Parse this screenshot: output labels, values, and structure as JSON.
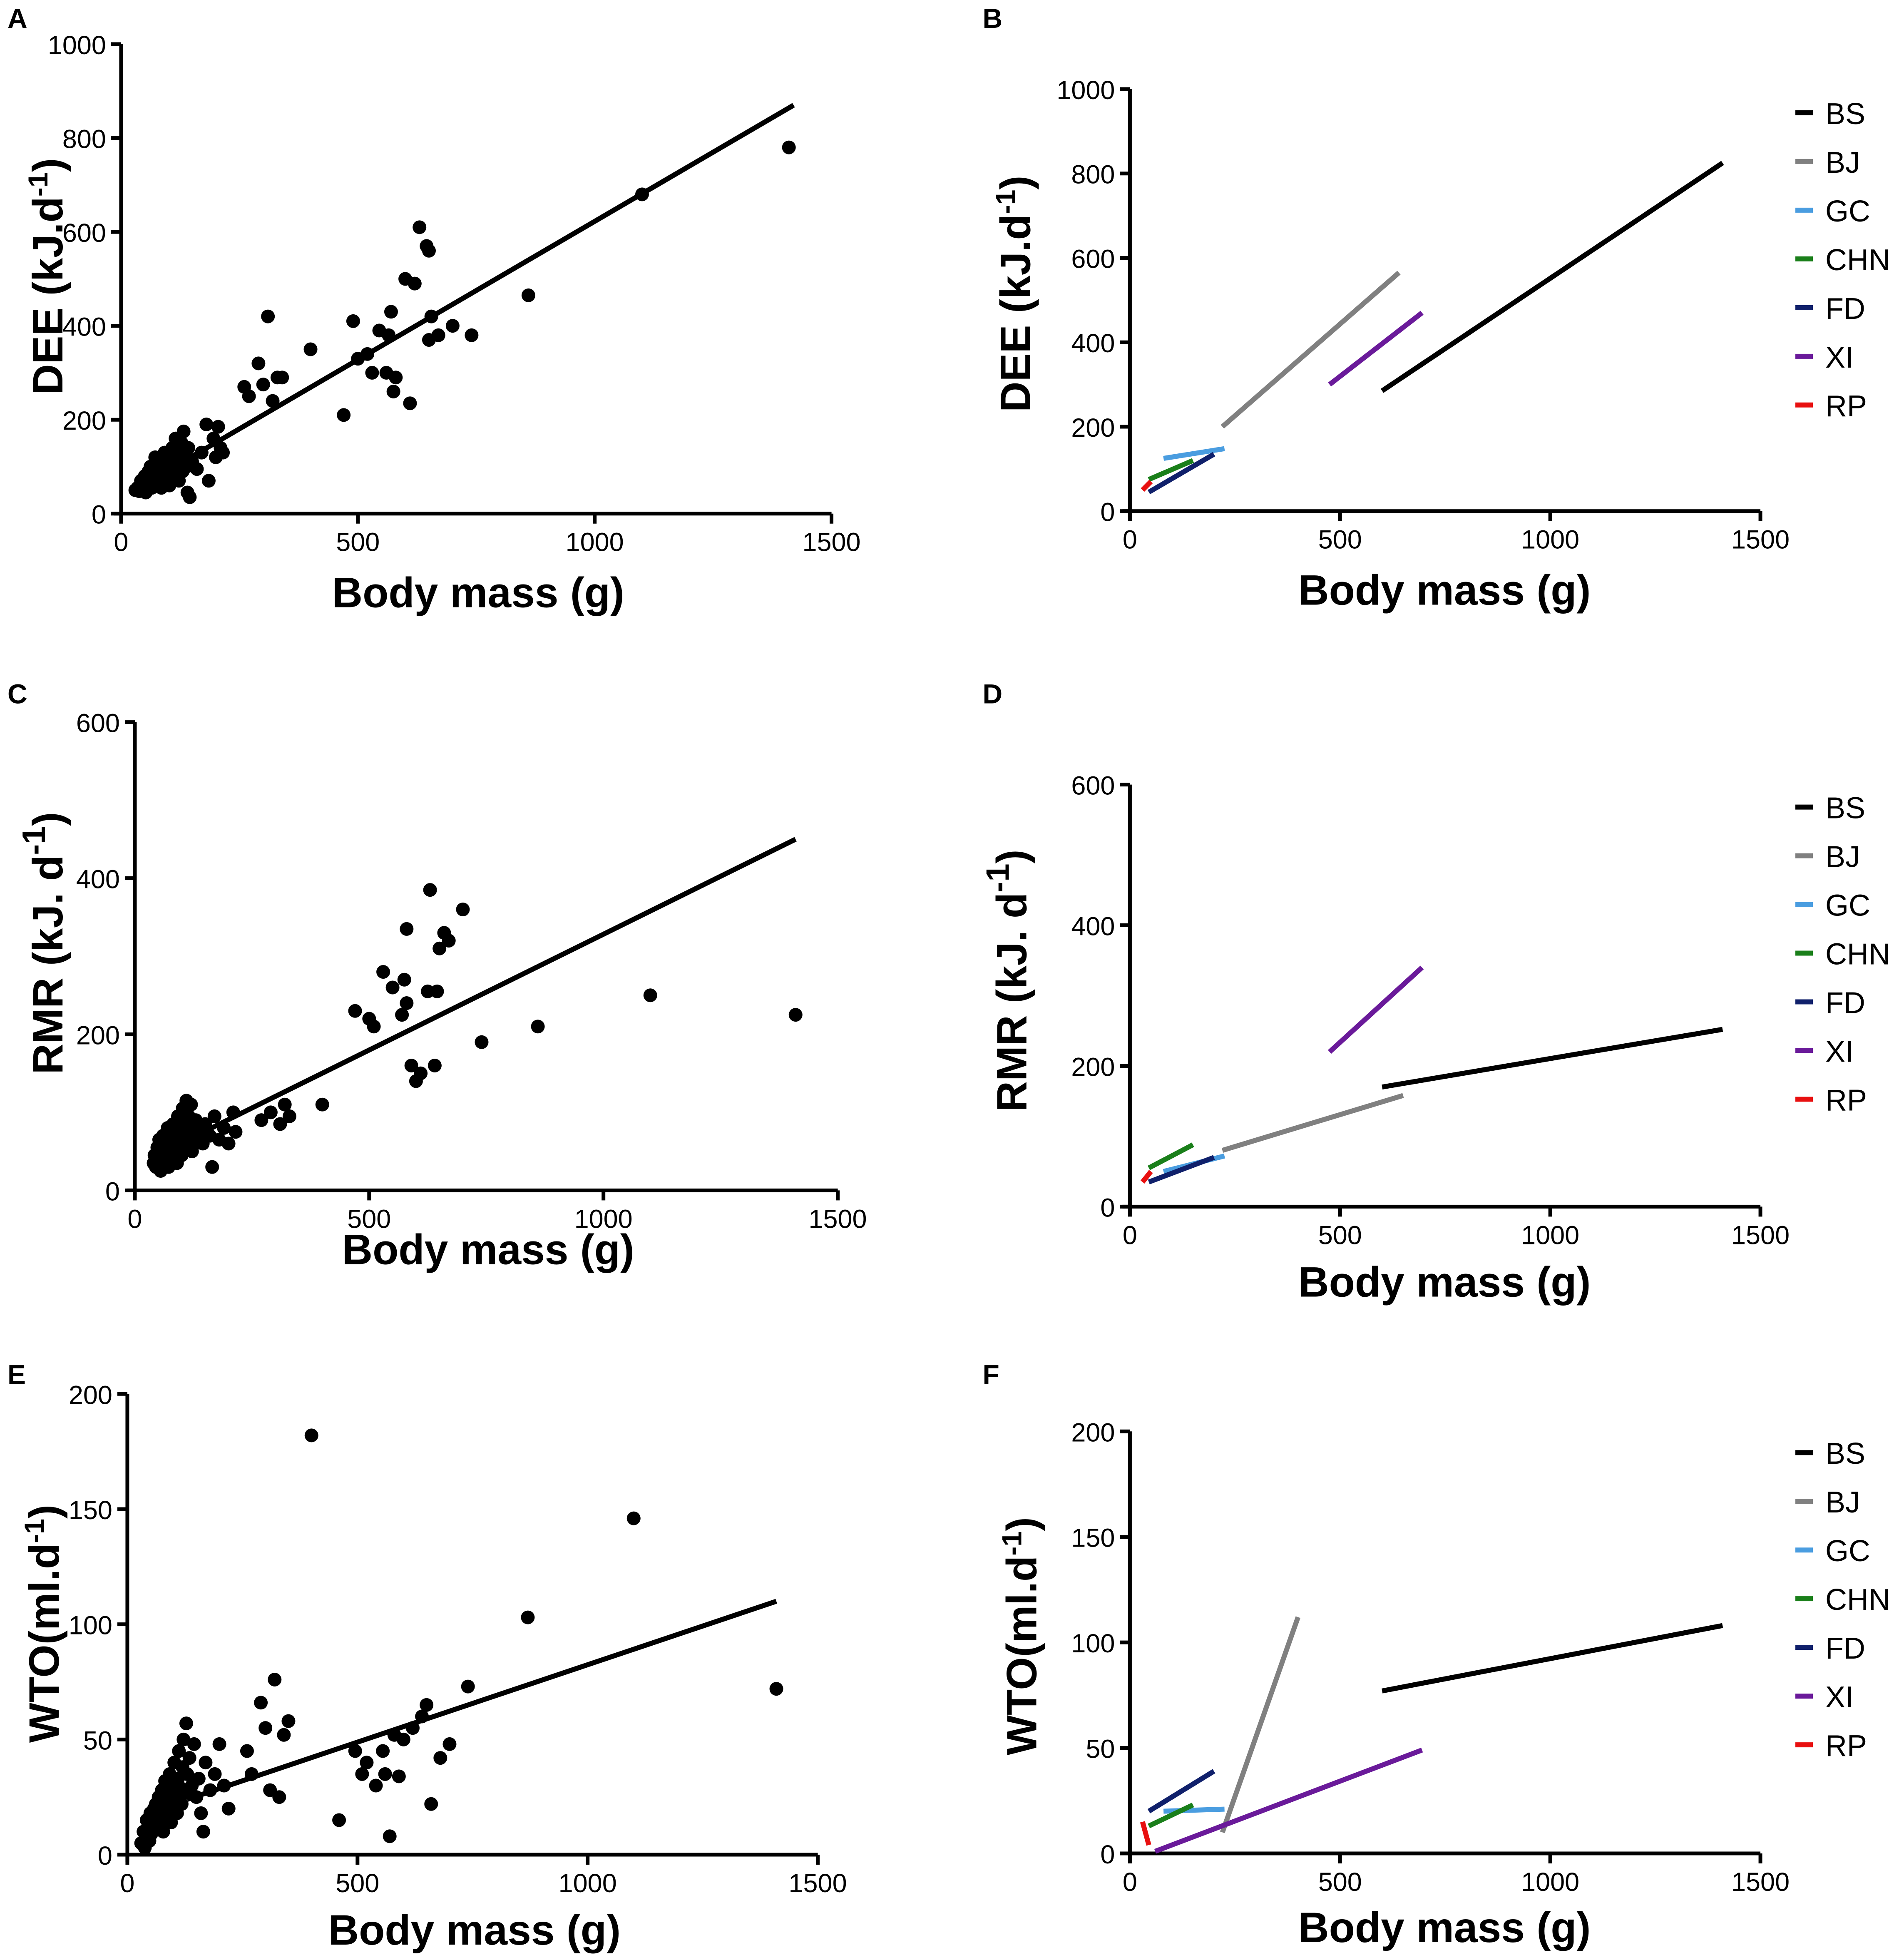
{
  "chart_data": [
    {
      "panel": "A",
      "type": "scatter",
      "regression": true,
      "xlabel": "Body mass (g)",
      "ylabel": "DEE (kJ.d",
      "ylabel_sup": "-1",
      "ylabel_end": ")",
      "xlim": [
        0,
        1500
      ],
      "ylim": [
        0,
        1000
      ],
      "xticks": [
        0,
        500,
        1000,
        1500
      ],
      "yticks": [
        0,
        200,
        400,
        600,
        800,
        1000
      ],
      "fit_line": {
        "x": [
          130,
          1420
        ],
        "y": [
          110,
          870
        ]
      },
      "points": [
        [
          30,
          50
        ],
        [
          35,
          55
        ],
        [
          38,
          48
        ],
        [
          40,
          60
        ],
        [
          42,
          70
        ],
        [
          45,
          65
        ],
        [
          48,
          55
        ],
        [
          50,
          80
        ],
        [
          52,
          45
        ],
        [
          55,
          75
        ],
        [
          58,
          90
        ],
        [
          60,
          60
        ],
        [
          62,
          100
        ],
        [
          65,
          55
        ],
        [
          68,
          70
        ],
        [
          70,
          85
        ],
        [
          72,
          120
        ],
        [
          75,
          65
        ],
        [
          78,
          95
        ],
        [
          80,
          75
        ],
        [
          82,
          110
        ],
        [
          85,
          55
        ],
        [
          88,
          80
        ],
        [
          90,
          100
        ],
        [
          92,
          130
        ],
        [
          95,
          70
        ],
        [
          98,
          90
        ],
        [
          100,
          115
        ],
        [
          102,
          60
        ],
        [
          105,
          85
        ],
        [
          108,
          140
        ],
        [
          110,
          75
        ],
        [
          112,
          100
        ],
        [
          115,
          160
        ],
        [
          118,
          95
        ],
        [
          120,
          130
        ],
        [
          122,
          70
        ],
        [
          125,
          110
        ],
        [
          128,
          150
        ],
        [
          130,
          90
        ],
        [
          132,
          175
        ],
        [
          135,
          120
        ],
        [
          138,
          100
        ],
        [
          140,
          45
        ],
        [
          142,
          140
        ],
        [
          145,
          35
        ],
        [
          150,
          110
        ],
        [
          160,
          95
        ],
        [
          170,
          130
        ],
        [
          180,
          190
        ],
        [
          185,
          70
        ],
        [
          195,
          160
        ],
        [
          200,
          120
        ],
        [
          205,
          185
        ],
        [
          210,
          140
        ],
        [
          215,
          130
        ],
        [
          260,
          270
        ],
        [
          270,
          250
        ],
        [
          290,
          320
        ],
        [
          300,
          275
        ],
        [
          310,
          420
        ],
        [
          320,
          240
        ],
        [
          330,
          290
        ],
        [
          340,
          290
        ],
        [
          400,
          350
        ],
        [
          470,
          210
        ],
        [
          490,
          410
        ],
        [
          500,
          330
        ],
        [
          520,
          340
        ],
        [
          530,
          300
        ],
        [
          545,
          390
        ],
        [
          560,
          300
        ],
        [
          565,
          380
        ],
        [
          570,
          430
        ],
        [
          575,
          260
        ],
        [
          580,
          290
        ],
        [
          600,
          500
        ],
        [
          610,
          235
        ],
        [
          620,
          490
        ],
        [
          630,
          610
        ],
        [
          645,
          570
        ],
        [
          650,
          560
        ],
        [
          655,
          420
        ],
        [
          650,
          370
        ],
        [
          670,
          380
        ],
        [
          700,
          400
        ],
        [
          740,
          380
        ],
        [
          860,
          465
        ],
        [
          1100,
          680
        ],
        [
          1410,
          780
        ]
      ]
    },
    {
      "panel": "B",
      "type": "line",
      "xlabel": "Body mass (g)",
      "ylabel": "DEE (kJ.d",
      "ylabel_sup": "-1",
      "ylabel_end": ")",
      "xlim": [
        0,
        1500
      ],
      "ylim": [
        0,
        1000
      ],
      "xticks": [
        0,
        500,
        1000,
        1500
      ],
      "yticks": [
        0,
        200,
        400,
        600,
        800,
        1000
      ],
      "series": [
        {
          "name": "BS",
          "color": "#000000",
          "x": [
            600,
            1410
          ],
          "y": [
            285,
            825
          ]
        },
        {
          "name": "BJ",
          "color": "#808080",
          "x": [
            220,
            640
          ],
          "y": [
            200,
            565
          ]
        },
        {
          "name": "GC",
          "color": "#4a9de0",
          "x": [
            80,
            225
          ],
          "y": [
            125,
            148
          ]
        },
        {
          "name": "CHN",
          "color": "#1a7f1a",
          "x": [
            45,
            150
          ],
          "y": [
            75,
            120
          ]
        },
        {
          "name": "FD",
          "color": "#10206b",
          "x": [
            45,
            200
          ],
          "y": [
            45,
            135
          ]
        },
        {
          "name": "XI",
          "color": "#6a1a9a",
          "x": [
            475,
            695
          ],
          "y": [
            300,
            470
          ]
        },
        {
          "name": "RP",
          "color": "#e81010",
          "x": [
            30,
            50
          ],
          "y": [
            50,
            70
          ]
        }
      ]
    },
    {
      "panel": "C",
      "type": "scatter",
      "regression": true,
      "xlabel": "Body mass (g)",
      "ylabel": "RMR (kJ. d",
      "ylabel_sup": "-1",
      "ylabel_end": ")",
      "xlim": [
        0,
        1500
      ],
      "ylim": [
        0,
        600
      ],
      "xticks": [
        0,
        500,
        1000,
        1500
      ],
      "yticks": [
        0,
        200,
        400,
        600
      ],
      "fit_line": {
        "x": [
          130,
          1410
        ],
        "y": [
          70,
          450
        ]
      },
      "points": [
        [
          40,
          35
        ],
        [
          42,
          45
        ],
        [
          45,
          30
        ],
        [
          48,
          55
        ],
        [
          50,
          40
        ],
        [
          52,
          65
        ],
        [
          55,
          25
        ],
        [
          58,
          50
        ],
        [
          60,
          70
        ],
        [
          62,
          35
        ],
        [
          65,
          60
        ],
        [
          68,
          45
        ],
        [
          70,
          80
        ],
        [
          72,
          30
        ],
        [
          75,
          55
        ],
        [
          78,
          65
        ],
        [
          80,
          40
        ],
        [
          82,
          85
        ],
        [
          85,
          50
        ],
        [
          88,
          70
        ],
        [
          90,
          35
        ],
        [
          92,
          95
        ],
        [
          95,
          60
        ],
        [
          98,
          75
        ],
        [
          100,
          45
        ],
        [
          102,
          105
        ],
        [
          105,
          65
        ],
        [
          108,
          85
        ],
        [
          110,
          115
        ],
        [
          112,
          55
        ],
        [
          115,
          95
        ],
        [
          118,
          70
        ],
        [
          120,
          110
        ],
        [
          122,
          50
        ],
        [
          125,
          80
        ],
        [
          128,
          60
        ],
        [
          130,
          90
        ],
        [
          135,
          70
        ],
        [
          140,
          75
        ],
        [
          145,
          60
        ],
        [
          150,
          85
        ],
        [
          160,
          70
        ],
        [
          165,
          30
        ],
        [
          170,
          95
        ],
        [
          180,
          65
        ],
        [
          190,
          80
        ],
        [
          200,
          60
        ],
        [
          210,
          100
        ],
        [
          215,
          75
        ],
        [
          270,
          90
        ],
        [
          290,
          100
        ],
        [
          310,
          85
        ],
        [
          320,
          110
        ],
        [
          330,
          95
        ],
        [
          400,
          110
        ],
        [
          470,
          230
        ],
        [
          500,
          220
        ],
        [
          510,
          210
        ],
        [
          530,
          280
        ],
        [
          550,
          260
        ],
        [
          570,
          225
        ],
        [
          575,
          270
        ],
        [
          580,
          240
        ],
        [
          580,
          335
        ],
        [
          590,
          160
        ],
        [
          600,
          140
        ],
        [
          610,
          150
        ],
        [
          625,
          255
        ],
        [
          630,
          385
        ],
        [
          640,
          160
        ],
        [
          645,
          255
        ],
        [
          650,
          310
        ],
        [
          660,
          330
        ],
        [
          670,
          320
        ],
        [
          700,
          360
        ],
        [
          740,
          190
        ],
        [
          860,
          210
        ],
        [
          1100,
          250
        ],
        [
          1410,
          225
        ]
      ]
    },
    {
      "panel": "D",
      "type": "line",
      "xlabel": "Body mass (g)",
      "ylabel": "RMR (kJ. d",
      "ylabel_sup": "-1",
      "ylabel_end": ")",
      "xlim": [
        0,
        1500
      ],
      "ylim": [
        0,
        600
      ],
      "xticks": [
        0,
        500,
        1000,
        1500
      ],
      "yticks": [
        0,
        200,
        400,
        600
      ],
      "series": [
        {
          "name": "BS",
          "color": "#000000",
          "x": [
            600,
            1410
          ],
          "y": [
            170,
            252
          ]
        },
        {
          "name": "BJ",
          "color": "#808080",
          "x": [
            220,
            650
          ],
          "y": [
            80,
            158
          ]
        },
        {
          "name": "GC",
          "color": "#4a9de0",
          "x": [
            80,
            225
          ],
          "y": [
            50,
            72
          ]
        },
        {
          "name": "CHN",
          "color": "#1a7f1a",
          "x": [
            45,
            150
          ],
          "y": [
            55,
            88
          ]
        },
        {
          "name": "FD",
          "color": "#10206b",
          "x": [
            45,
            200
          ],
          "y": [
            35,
            70
          ]
        },
        {
          "name": "XI",
          "color": "#6a1a9a",
          "x": [
            475,
            695
          ],
          "y": [
            220,
            340
          ]
        },
        {
          "name": "RP",
          "color": "#e81010",
          "x": [
            30,
            50
          ],
          "y": [
            35,
            50
          ]
        }
      ]
    },
    {
      "panel": "E",
      "type": "scatter",
      "regression": true,
      "xlabel": "Body mass (g)",
      "ylabel": "WTO(ml.d",
      "ylabel_sup": "-1",
      "ylabel_end": ")",
      "xlim": [
        0,
        1500
      ],
      "ylim": [
        0,
        200
      ],
      "xticks": [
        0,
        500,
        1000,
        1500
      ],
      "yticks": [
        0,
        50,
        100,
        150,
        200
      ],
      "fit_line": {
        "x": [
          130,
          1410
        ],
        "y": [
          24,
          110
        ]
      },
      "points": [
        [
          30,
          5
        ],
        [
          35,
          10
        ],
        [
          38,
          3
        ],
        [
          40,
          8
        ],
        [
          42,
          15
        ],
        [
          45,
          12
        ],
        [
          48,
          6
        ],
        [
          50,
          18
        ],
        [
          52,
          9
        ],
        [
          55,
          14
        ],
        [
          58,
          20
        ],
        [
          60,
          11
        ],
        [
          62,
          22
        ],
        [
          65,
          16
        ],
        [
          68,
          25
        ],
        [
          70,
          13
        ],
        [
          72,
          19
        ],
        [
          75,
          28
        ],
        [
          78,
          10
        ],
        [
          80,
          24
        ],
        [
          82,
          32
        ],
        [
          85,
          17
        ],
        [
          88,
          27
        ],
        [
          90,
          21
        ],
        [
          92,
          35
        ],
        [
          95,
          14
        ],
        [
          98,
          30
        ],
        [
          100,
          23
        ],
        [
          102,
          40
        ],
        [
          105,
          26
        ],
        [
          108,
          18
        ],
        [
          110,
          33
        ],
        [
          112,
          45
        ],
        [
          115,
          29
        ],
        [
          118,
          22
        ],
        [
          120,
          38
        ],
        [
          122,
          50
        ],
        [
          125,
          27
        ],
        [
          128,
          57
        ],
        [
          130,
          35
        ],
        [
          135,
          42
        ],
        [
          140,
          30
        ],
        [
          145,
          48
        ],
        [
          150,
          25
        ],
        [
          155,
          33
        ],
        [
          160,
          18
        ],
        [
          165,
          10
        ],
        [
          170,
          40
        ],
        [
          180,
          28
        ],
        [
          190,
          35
        ],
        [
          200,
          48
        ],
        [
          210,
          30
        ],
        [
          220,
          20
        ],
        [
          260,
          45
        ],
        [
          270,
          35
        ],
        [
          290,
          66
        ],
        [
          300,
          55
        ],
        [
          310,
          28
        ],
        [
          320,
          76
        ],
        [
          330,
          25
        ],
        [
          340,
          52
        ],
        [
          350,
          58
        ],
        [
          400,
          182
        ],
        [
          460,
          15
        ],
        [
          495,
          45
        ],
        [
          510,
          35
        ],
        [
          520,
          40
        ],
        [
          540,
          30
        ],
        [
          555,
          45
        ],
        [
          560,
          35
        ],
        [
          570,
          8
        ],
        [
          580,
          52
        ],
        [
          590,
          34
        ],
        [
          600,
          50
        ],
        [
          620,
          55
        ],
        [
          640,
          60
        ],
        [
          650,
          65
        ],
        [
          660,
          22
        ],
        [
          680,
          42
        ],
        [
          700,
          48
        ],
        [
          740,
          73
        ],
        [
          870,
          103
        ],
        [
          1100,
          146
        ],
        [
          1410,
          72
        ]
      ]
    },
    {
      "panel": "F",
      "type": "line",
      "xlabel": "Body mass (g)",
      "ylabel": "WTO(ml.d",
      "ylabel_sup": "-1",
      "ylabel_end": ")",
      "xlim": [
        0,
        1500
      ],
      "ylim": [
        0,
        200
      ],
      "xticks": [
        0,
        500,
        1000,
        1500
      ],
      "yticks": [
        0,
        50,
        100,
        150,
        200
      ],
      "series": [
        {
          "name": "BS",
          "color": "#000000",
          "x": [
            600,
            1410
          ],
          "y": [
            77,
            108
          ]
        },
        {
          "name": "BJ",
          "color": "#808080",
          "x": [
            220,
            400
          ],
          "y": [
            10,
            112
          ]
        },
        {
          "name": "GC",
          "color": "#4a9de0",
          "x": [
            80,
            225
          ],
          "y": [
            20,
            21
          ]
        },
        {
          "name": "CHN",
          "color": "#1a7f1a",
          "x": [
            45,
            150
          ],
          "y": [
            13,
            23
          ]
        },
        {
          "name": "FD",
          "color": "#10206b",
          "x": [
            45,
            200
          ],
          "y": [
            20,
            39
          ]
        },
        {
          "name": "XI",
          "color": "#6a1a9a",
          "x": [
            60,
            695
          ],
          "y": [
            1,
            49
          ]
        },
        {
          "name": "RP",
          "color": "#e81010",
          "x": [
            30,
            45
          ],
          "y": [
            15,
            4
          ]
        }
      ]
    }
  ]
}
